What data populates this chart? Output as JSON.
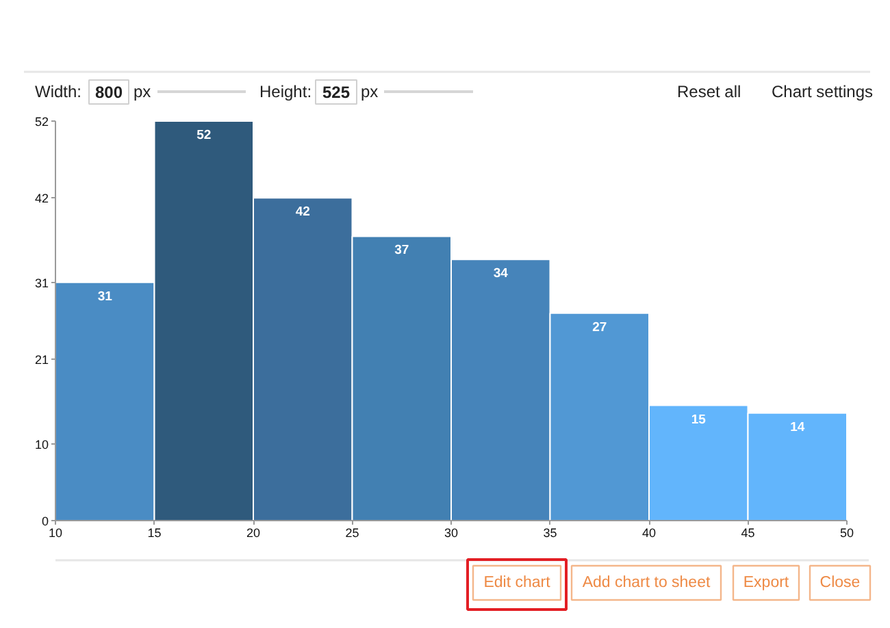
{
  "chart_data": {
    "type": "histogram",
    "bins": [
      10,
      15,
      20,
      25,
      30,
      35,
      40,
      45,
      50
    ],
    "values": [
      31,
      52,
      42,
      37,
      34,
      27,
      15,
      14
    ],
    "colors": [
      "#4a8cc4",
      "#2f5a7c",
      "#3c6e9c",
      "#4280b2",
      "#4684ba",
      "#5198d4",
      "#62b5fc",
      "#62b5fc"
    ],
    "xlim": [
      10,
      50
    ],
    "ylim": [
      0,
      52
    ],
    "xticks": [
      10,
      15,
      20,
      25,
      30,
      35,
      40,
      45,
      50
    ],
    "yticks": [
      0,
      10,
      21,
      31,
      42,
      52
    ],
    "data_labels": true,
    "annotations": [
      "Width:",
      "800",
      "px",
      "Height:",
      "525",
      "px",
      "Reset all",
      "Chart settings",
      "Edit chart",
      "Add chart to sheet",
      "Export",
      "Close"
    ]
  }
}
